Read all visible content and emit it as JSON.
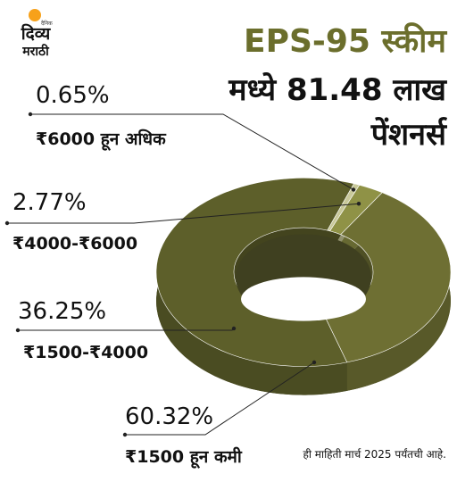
{
  "logo": {
    "line1": "दिव्य",
    "line2": "मराठी",
    "tag": "दैनिक"
  },
  "header": {
    "title_line1": "EPS-95 स्कीम",
    "title_line2": "मध्ये 81.48 लाख",
    "title_line3": "पेंशनर्स"
  },
  "footnote": "ही माहिती मार्च 2025 पर्यंतची आहे.",
  "colors": {
    "accent": "#6b6e2c",
    "slice_main": "#5d5f2a",
    "slice_mid": "#6e6f33",
    "slice_small": "#8f9246",
    "slice_tiny": "#c9c99a"
  },
  "chart_data": {
    "type": "pie",
    "title": "EPS-95 स्कीम मध्ये 81.48 लाख पेंशनर्स",
    "slices": [
      {
        "label": "₹6000 हून अधिक",
        "value": 0.65,
        "value_label": "0.65%"
      },
      {
        "label": "₹4000-₹6000",
        "value": 2.77,
        "value_label": "2.77%"
      },
      {
        "label": "₹1500-₹4000",
        "value": 36.25,
        "value_label": "36.25%"
      },
      {
        "label": "₹1500 हून कमी",
        "value": 60.32,
        "value_label": "60.32%"
      }
    ]
  }
}
